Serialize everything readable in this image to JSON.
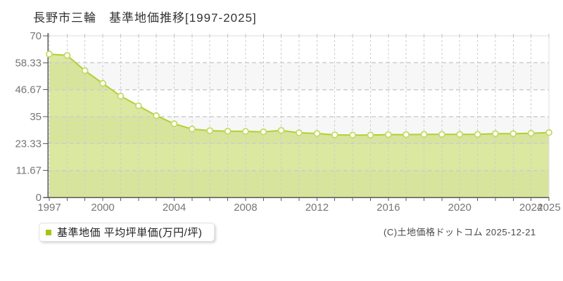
{
  "header": {
    "title": "長野市三輪　基準地価推移[1997-2025]"
  },
  "legend": {
    "label": "基準地価 平均坪単価(万円/坪)",
    "swatch_color": "#a3c614"
  },
  "footer": {
    "copyright": "(C)土地価格ドットコム 2025-12-21"
  },
  "chart_data": {
    "type": "area",
    "title": "長野市三輪　基準地価推移[1997-2025]",
    "x": [
      1997,
      1998,
      1999,
      2000,
      2001,
      2002,
      2003,
      2004,
      2005,
      2006,
      2007,
      2008,
      2009,
      2010,
      2011,
      2012,
      2013,
      2014,
      2015,
      2016,
      2017,
      2018,
      2019,
      2020,
      2021,
      2022,
      2023,
      2024,
      2025
    ],
    "series": [
      {
        "name": "基準地価 平均坪単価(万円/坪)",
        "values": [
          62.1,
          61.5,
          54.9,
          49.4,
          43.9,
          39.7,
          35.4,
          31.9,
          29.6,
          28.9,
          28.7,
          28.6,
          28.4,
          29.0,
          28.0,
          27.7,
          27.1,
          27.0,
          27.0,
          27.2,
          27.2,
          27.3,
          27.3,
          27.3,
          27.3,
          27.6,
          27.6,
          27.8,
          28.1
        ]
      }
    ],
    "xlabel": "",
    "ylabel": "",
    "unit": "万円/坪",
    "ylim": [
      0,
      70
    ],
    "yticks": [
      70,
      58.33,
      46.67,
      35,
      23.33,
      11.67,
      0
    ],
    "ytick_labels": [
      "70",
      "58.33",
      "46.67",
      "35",
      "23.33",
      "11.67",
      "0"
    ],
    "xticks": [
      1997,
      2000,
      2004,
      2008,
      2012,
      2016,
      2020,
      2024,
      2025
    ],
    "grid": true,
    "legend_position": "bottom-left",
    "colors": {
      "line": "#b2cf35",
      "fill": "rgba(175,203,45,0.45)",
      "marker_fill": "#fffef6",
      "marker_stroke": "#c6d96a",
      "grid": "#cdcdcd",
      "band": "#f7f7f7",
      "axis": "#5a5a5a",
      "border": "#dcdcdc",
      "top_tick": "#c4c4c4",
      "tick_label": "#767676"
    }
  }
}
